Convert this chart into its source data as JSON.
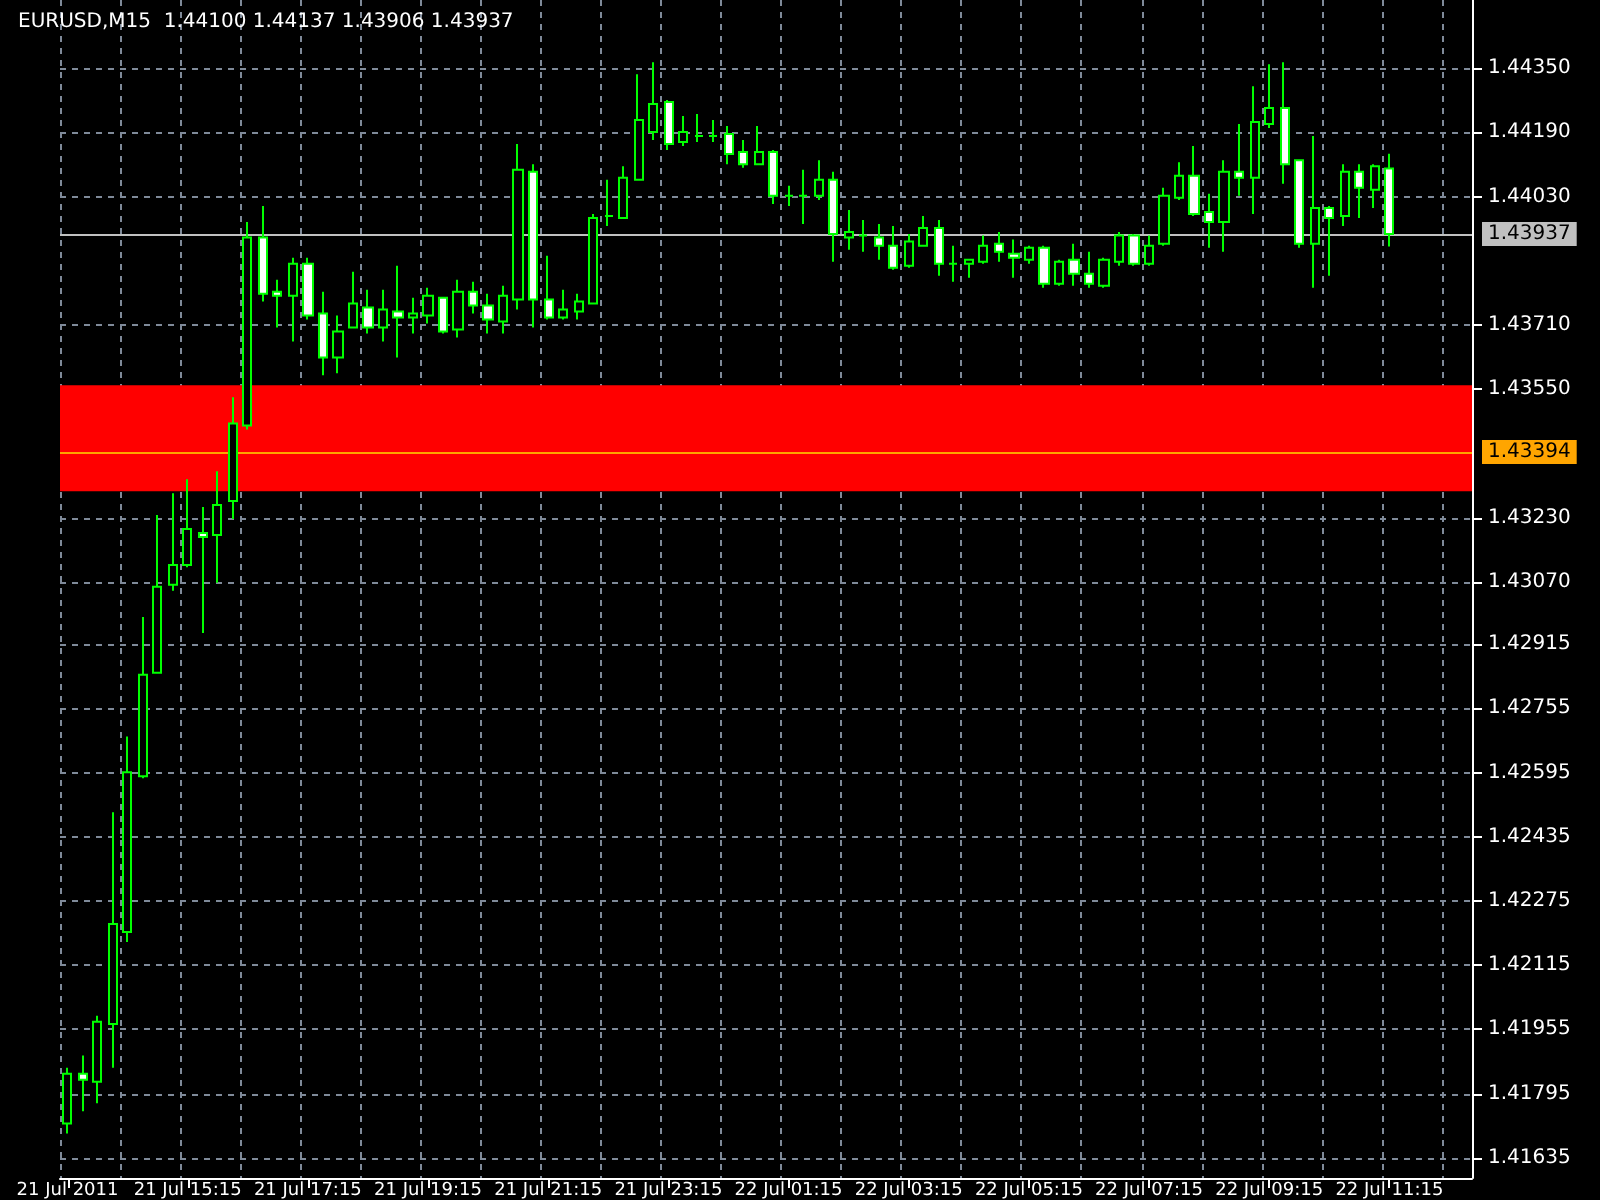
{
  "chart_data": {
    "type": "candlestick",
    "title": "EURUSD,M15  1.44100 1.44137 1.43906 1.43937",
    "color": "#00ff00",
    "categories": [
      "21 Jul 2011",
      null,
      null,
      null,
      null,
      null,
      null,
      null,
      "21 Jul 15:15",
      null,
      null,
      null,
      null,
      null,
      null,
      null,
      "21 Jul 17:15",
      null,
      null,
      null,
      null,
      null,
      null,
      null,
      "21 Jul 19:15",
      null,
      null,
      null,
      null,
      null,
      null,
      null,
      "21 Jul 21:15",
      null,
      null,
      null,
      null,
      null,
      null,
      null,
      "21 Jul 23:15",
      null,
      null,
      null,
      null,
      null,
      null,
      null,
      "22 Jul 01:15",
      null,
      null,
      null,
      null,
      null,
      null,
      null,
      "22 Jul 03:15",
      null,
      null,
      null,
      null,
      null,
      null,
      null,
      "22 Jul 05:15",
      null,
      null,
      null,
      null,
      null,
      null,
      null,
      "22 Jul 07:15",
      null,
      null,
      null,
      null,
      null,
      null,
      null,
      "22 Jul 09:15",
      null,
      null,
      null,
      null,
      null,
      null,
      null,
      "22 Jul 11:15"
    ],
    "ohlc": [
      [
        1.41721,
        1.4186,
        1.41696,
        1.41845
      ],
      [
        1.41845,
        1.4189,
        1.41751,
        1.4183
      ],
      [
        1.41825,
        1.41989,
        1.41771,
        1.41974
      ],
      [
        1.41969,
        1.42496,
        1.4186,
        1.42218
      ],
      [
        1.42198,
        1.42685,
        1.42173,
        1.42596
      ],
      [
        1.42586,
        1.42983,
        1.42581,
        1.42839
      ],
      [
        1.42844,
        1.43237,
        1.42844,
        1.43058
      ],
      [
        1.43063,
        1.43291,
        1.43048,
        1.43112
      ],
      [
        1.43112,
        1.43326,
        1.43107,
        1.43202
      ],
      [
        1.43192,
        1.43257,
        1.42943,
        1.43182
      ],
      [
        1.43187,
        1.43346,
        1.43068,
        1.43262
      ],
      [
        1.43272,
        1.4353,
        1.43227,
        1.43465
      ],
      [
        1.4346,
        1.43967,
        1.4345,
        1.43928
      ],
      [
        1.43928,
        1.44007,
        1.43769,
        1.43788
      ],
      [
        1.43793,
        1.43823,
        1.43704,
        1.43783
      ],
      [
        1.43783,
        1.43878,
        1.43669,
        1.43863
      ],
      [
        1.43863,
        1.43878,
        1.43724,
        1.43734
      ],
      [
        1.43739,
        1.43793,
        1.43585,
        1.43629
      ],
      [
        1.43629,
        1.43734,
        1.4359,
        1.43694
      ],
      [
        1.43704,
        1.43843,
        1.43704,
        1.43764
      ],
      [
        1.43754,
        1.43798,
        1.43689,
        1.43704
      ],
      [
        1.43704,
        1.43798,
        1.43669,
        1.43749
      ],
      [
        1.43744,
        1.43858,
        1.43629,
        1.43729
      ],
      [
        1.43729,
        1.43778,
        1.43689,
        1.43739
      ],
      [
        1.43734,
        1.43803,
        1.43714,
        1.43783
      ],
      [
        1.43778,
        1.43778,
        1.43689,
        1.43694
      ],
      [
        1.43699,
        1.43823,
        1.43679,
        1.43793
      ],
      [
        1.43793,
        1.43818,
        1.43739,
        1.43759
      ],
      [
        1.43759,
        1.43788,
        1.43689,
        1.43724
      ],
      [
        1.43719,
        1.43808,
        1.43689,
        1.43783
      ],
      [
        1.43774,
        1.44161,
        1.43749,
        1.44097
      ],
      [
        1.44092,
        1.44111,
        1.43704,
        1.43774
      ],
      [
        1.43774,
        1.43883,
        1.43724,
        1.43729
      ],
      [
        1.43729,
        1.43798,
        1.43724,
        1.43749
      ],
      [
        1.43744,
        1.43788,
        1.43724,
        1.43769
      ],
      [
        1.43764,
        1.43987,
        1.43764,
        1.43977
      ],
      [
        1.43982,
        1.44072,
        1.43957,
        1.43982
      ],
      [
        1.43977,
        1.44106,
        1.43977,
        1.44077
      ],
      [
        1.44072,
        1.44335,
        1.44072,
        1.44221
      ],
      [
        1.44191,
        1.44365,
        1.44171,
        1.44261
      ],
      [
        1.44266,
        1.44271,
        1.44146,
        1.44161
      ],
      [
        1.44166,
        1.44231,
        1.44156,
        1.44191
      ],
      [
        1.44181,
        1.44236,
        1.44166,
        1.44181
      ],
      [
        1.44181,
        1.44221,
        1.44166,
        1.44181
      ],
      [
        1.44186,
        1.44206,
        1.44111,
        1.44136
      ],
      [
        1.44141,
        1.44171,
        1.44102,
        1.44111
      ],
      [
        1.44111,
        1.44206,
        1.44111,
        1.44141
      ],
      [
        1.44141,
        1.44146,
        1.44012,
        1.44032
      ],
      [
        1.44032,
        1.44057,
        1.44007,
        1.44032
      ],
      [
        1.44032,
        1.44097,
        1.43962,
        1.44032
      ],
      [
        1.44032,
        1.44121,
        1.44022,
        1.44072
      ],
      [
        1.44072,
        1.44092,
        1.43868,
        1.43937
      ],
      [
        1.43928,
        1.43997,
        1.43898,
        1.43942
      ],
      [
        1.43933,
        1.43972,
        1.43893,
        1.43933
      ],
      [
        1.43928,
        1.43962,
        1.43873,
        1.43908
      ],
      [
        1.43908,
        1.43957,
        1.43848,
        1.43853
      ],
      [
        1.43858,
        1.43937,
        1.43853,
        1.43918
      ],
      [
        1.43908,
        1.43982,
        1.43908,
        1.43952
      ],
      [
        1.43952,
        1.43972,
        1.43833,
        1.43863
      ],
      [
        1.43863,
        1.43908,
        1.43818,
        1.43863
      ],
      [
        1.43863,
        1.43873,
        1.43828,
        1.43873
      ],
      [
        1.43868,
        1.43933,
        1.43863,
        1.43908
      ],
      [
        1.43913,
        1.43942,
        1.43868,
        1.43893
      ],
      [
        1.43888,
        1.43923,
        1.43828,
        1.43878
      ],
      [
        1.43873,
        1.43908,
        1.43863,
        1.43903
      ],
      [
        1.43903,
        1.43908,
        1.43803,
        1.43813
      ],
      [
        1.43813,
        1.43873,
        1.43808,
        1.43868
      ],
      [
        1.43873,
        1.43913,
        1.43808,
        1.43838
      ],
      [
        1.43838,
        1.43893,
        1.43803,
        1.43813
      ],
      [
        1.43808,
        1.43878,
        1.43803,
        1.43873
      ],
      [
        1.43868,
        1.43942,
        1.43858,
        1.43933
      ],
      [
        1.43933,
        1.43937,
        1.43858,
        1.43863
      ],
      [
        1.43863,
        1.43933,
        1.43858,
        1.43908
      ],
      [
        1.43913,
        1.44052,
        1.43908,
        1.44032
      ],
      [
        1.44027,
        1.44116,
        1.44022,
        1.44082
      ],
      [
        1.44082,
        1.44156,
        1.43982,
        1.43987
      ],
      [
        1.43992,
        1.44037,
        1.43903,
        1.43967
      ],
      [
        1.43967,
        1.44121,
        1.43893,
        1.44092
      ],
      [
        1.44092,
        1.44211,
        1.44032,
        1.44077
      ],
      [
        1.44077,
        1.44305,
        1.43987,
        1.44216
      ],
      [
        1.44211,
        1.4436,
        1.44201,
        1.44251
      ],
      [
        1.44251,
        1.44365,
        1.44062,
        1.44111
      ],
      [
        1.44121,
        1.44121,
        1.43903,
        1.43913
      ],
      [
        1.43913,
        1.44181,
        1.43803,
        1.44002
      ],
      [
        1.44002,
        1.44007,
        1.43833,
        1.43977
      ],
      [
        1.43982,
        1.44111,
        1.43957,
        1.44092
      ],
      [
        1.44092,
        1.44111,
        1.43977,
        1.44052
      ],
      [
        1.44047,
        1.44111,
        1.44002,
        1.44106
      ],
      [
        1.441,
        1.44137,
        1.43906,
        1.43937
      ]
    ],
    "ylim": [
      1.41585,
      1.4452
    ],
    "yticks": [
      {
        "value": 1.41635,
        "label": "1.41635"
      },
      {
        "value": 1.41795,
        "label": "1.41795"
      },
      {
        "value": 1.41955,
        "label": "1.41955"
      },
      {
        "value": 1.42115,
        "label": "1.42115"
      },
      {
        "value": 1.42275,
        "label": "1.42275"
      },
      {
        "value": 1.42435,
        "label": "1.42435"
      },
      {
        "value": 1.42595,
        "label": "1.42595"
      },
      {
        "value": 1.42755,
        "label": "1.42755"
      },
      {
        "value": 1.42915,
        "label": "1.42915"
      },
      {
        "value": 1.4307,
        "label": "1.43070"
      },
      {
        "value": 1.4323,
        "label": "1.43230"
      },
      {
        "value": 1.4355,
        "label": "1.43550"
      },
      {
        "value": 1.4371,
        "label": "1.43710"
      },
      {
        "value": 1.4403,
        "label": "1.44030"
      },
      {
        "value": 1.4419,
        "label": "1.44190"
      },
      {
        "value": 1.4435,
        "label": "1.44350"
      }
    ],
    "grid": true,
    "ref_lines": [
      {
        "axis": "y",
        "value": 1.43937,
        "label": "1.43937",
        "color": "#c0c0c0"
      },
      {
        "axis": "y",
        "value": 1.43394,
        "label": "1.43394",
        "color": "#ffa500"
      }
    ],
    "bands": [
      {
        "axis": "y",
        "from": 1.4356,
        "to": 1.43296,
        "color": "#ff0000"
      }
    ]
  }
}
